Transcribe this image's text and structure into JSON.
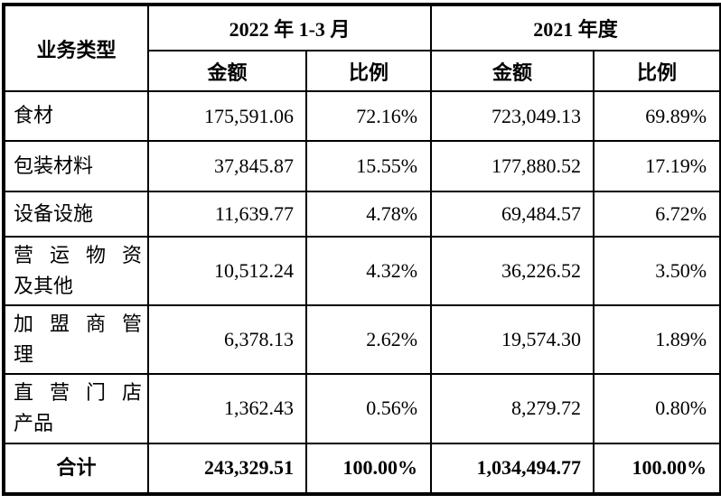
{
  "table": {
    "header": {
      "business_type": "业务类型",
      "period_2022": "2022 年 1-3 月",
      "period_2021": "2021 年度",
      "amount": "金额",
      "ratio": "比例"
    },
    "rows": [
      {
        "label": "食材",
        "amount_2022": "175,591.06",
        "ratio_2022": "72.16%",
        "amount_2021": "723,049.13",
        "ratio_2021": "69.89%"
      },
      {
        "label": "包装材料",
        "amount_2022": "37,845.87",
        "ratio_2022": "15.55%",
        "amount_2021": "177,880.52",
        "ratio_2021": "17.19%"
      },
      {
        "label": "设备设施",
        "amount_2022": "11,639.77",
        "ratio_2022": "4.78%",
        "amount_2021": "69,484.57",
        "ratio_2021": "6.72%"
      },
      {
        "label": "营运物资\n及其他",
        "amount_2022": "10,512.24",
        "ratio_2022": "4.32%",
        "amount_2021": "36,226.52",
        "ratio_2021": "3.50%"
      },
      {
        "label": "加盟商管\n理",
        "amount_2022": "6,378.13",
        "ratio_2022": "2.62%",
        "amount_2021": "19,574.30",
        "ratio_2021": "1.89%"
      },
      {
        "label": "直营门店\n产品",
        "amount_2022": "1,362.43",
        "ratio_2022": "0.56%",
        "amount_2021": "8,279.72",
        "ratio_2021": "0.80%"
      }
    ],
    "total": {
      "label": "合计",
      "amount_2022": "243,329.51",
      "ratio_2022": "100.00%",
      "amount_2021": "1,034,494.77",
      "ratio_2021": "100.00%"
    }
  },
  "colors": {
    "border": "#000000",
    "text": "#000000",
    "background": "#ffffff"
  }
}
